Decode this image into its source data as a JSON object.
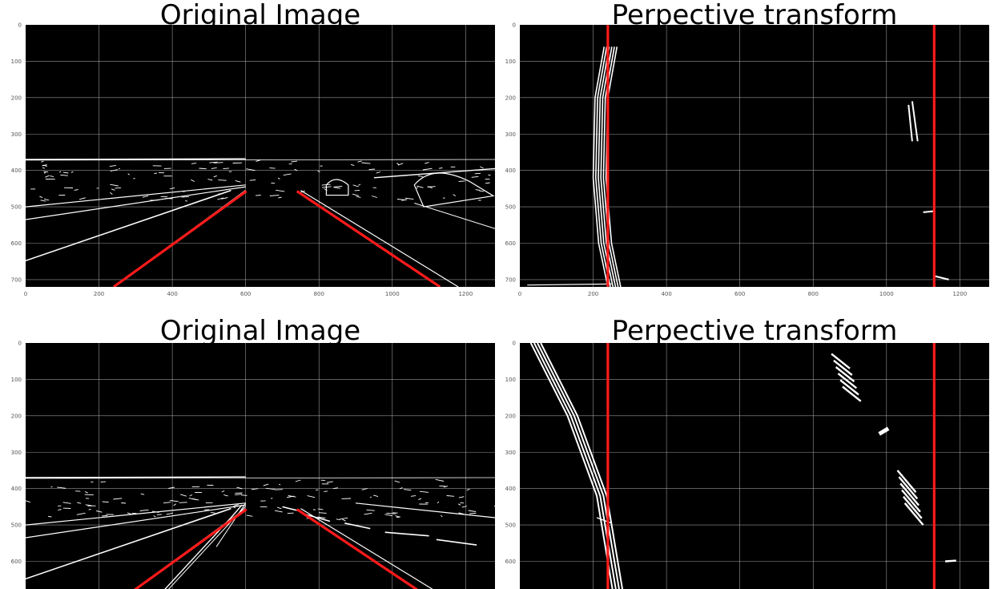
{
  "panels": [
    {
      "id": "p1",
      "title": "Original Image",
      "kind": "original",
      "xticks": [
        "0",
        "200",
        "400",
        "600",
        "800",
        "1000",
        "1200"
      ],
      "yticks": [
        "0",
        "100",
        "200",
        "300",
        "400",
        "500",
        "600",
        "700"
      ],
      "show_xticks": true
    },
    {
      "id": "p2",
      "title": "Perpective transform",
      "kind": "warped",
      "xticks": [
        "0",
        "200",
        "400",
        "600",
        "800",
        "1000",
        "1200"
      ],
      "yticks": [
        "0",
        "100",
        "200",
        "300",
        "400",
        "500",
        "600",
        "700"
      ],
      "show_xticks": true
    },
    {
      "id": "p3",
      "title": "Original Image",
      "kind": "original",
      "xticks": [],
      "yticks": [
        "0",
        "100",
        "200",
        "300",
        "400",
        "500",
        "600"
      ],
      "show_xticks": false
    },
    {
      "id": "p4",
      "title": "Perpective transform",
      "kind": "warped",
      "xticks": [],
      "yticks": [
        "0",
        "100",
        "200",
        "300",
        "400",
        "500",
        "600"
      ],
      "show_xticks": false
    }
  ],
  "colors": {
    "background": "#000000",
    "grid": "#bdbdbd",
    "edges": "#ffffff",
    "lines": "#ff1a1a"
  }
}
